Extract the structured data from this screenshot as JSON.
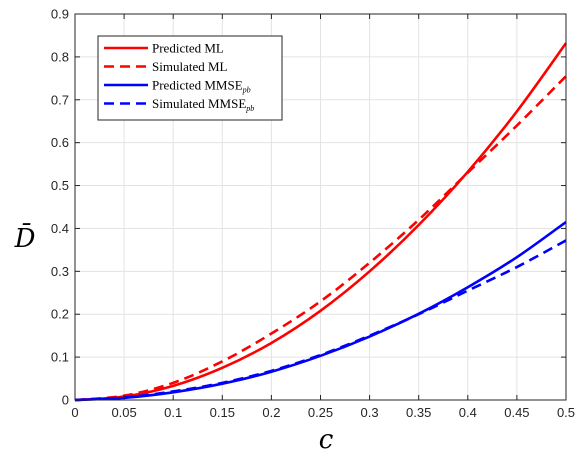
{
  "chart_data": {
    "type": "line",
    "xlabel": "c",
    "ylabel": "D̄",
    "xlim": [
      0,
      0.5
    ],
    "ylim": [
      0,
      0.9
    ],
    "xticks": [
      0,
      0.05,
      0.1,
      0.15,
      0.2,
      0.25,
      0.3,
      0.35,
      0.4,
      0.45,
      0.5
    ],
    "xtick_labels": [
      "0",
      "0.05",
      "0.1",
      "0.15",
      "0.2",
      "0.25",
      "0.3",
      "0.35",
      "0.4",
      "0.45",
      "0.5"
    ],
    "yticks": [
      0,
      0.1,
      0.2,
      0.3,
      0.4,
      0.5,
      0.6,
      0.7,
      0.8,
      0.9
    ],
    "ytick_labels": [
      "0",
      "0.1",
      "0.2",
      "0.3",
      "0.4",
      "0.5",
      "0.6",
      "0.7",
      "0.8",
      "0.9"
    ],
    "grid": true,
    "legend_position": "top-left",
    "series": [
      {
        "name": "Predicted ML",
        "legend_main": "Predicted ML",
        "legend_sub": "",
        "color": "#ff0000",
        "style": "solid",
        "x": [
          0,
          0.05,
          0.1,
          0.15,
          0.2,
          0.25,
          0.3,
          0.35,
          0.4,
          0.45,
          0.5
        ],
        "y": [
          0,
          0.008,
          0.033,
          0.075,
          0.133,
          0.208,
          0.3,
          0.408,
          0.532,
          0.673,
          0.832
        ]
      },
      {
        "name": "Simulated ML",
        "legend_main": "Simulated ML",
        "legend_sub": "",
        "color": "#ff0000",
        "style": "dashed",
        "x": [
          0,
          0.05,
          0.1,
          0.15,
          0.2,
          0.25,
          0.3,
          0.35,
          0.4,
          0.45,
          0.5
        ],
        "y": [
          0,
          0.01,
          0.04,
          0.09,
          0.155,
          0.23,
          0.32,
          0.42,
          0.53,
          0.64,
          0.755
        ]
      },
      {
        "name": "Predicted MMSEpb",
        "legend_main": "Predicted MMSE",
        "legend_sub": "pb",
        "color": "#0000ff",
        "style": "solid",
        "x": [
          0,
          0.05,
          0.1,
          0.15,
          0.2,
          0.25,
          0.3,
          0.35,
          0.4,
          0.45,
          0.5
        ],
        "y": [
          0,
          0.005,
          0.018,
          0.038,
          0.066,
          0.103,
          0.148,
          0.201,
          0.263,
          0.333,
          0.415
        ]
      },
      {
        "name": "Simulated MMSEpb",
        "legend_main": "Simulated MMSE",
        "legend_sub": "pb",
        "color": "#0000ff",
        "style": "dashed",
        "x": [
          0,
          0.05,
          0.1,
          0.15,
          0.2,
          0.25,
          0.3,
          0.35,
          0.4,
          0.45,
          0.5
        ],
        "y": [
          0,
          0.006,
          0.02,
          0.04,
          0.068,
          0.105,
          0.15,
          0.2,
          0.255,
          0.31,
          0.372
        ]
      }
    ]
  }
}
